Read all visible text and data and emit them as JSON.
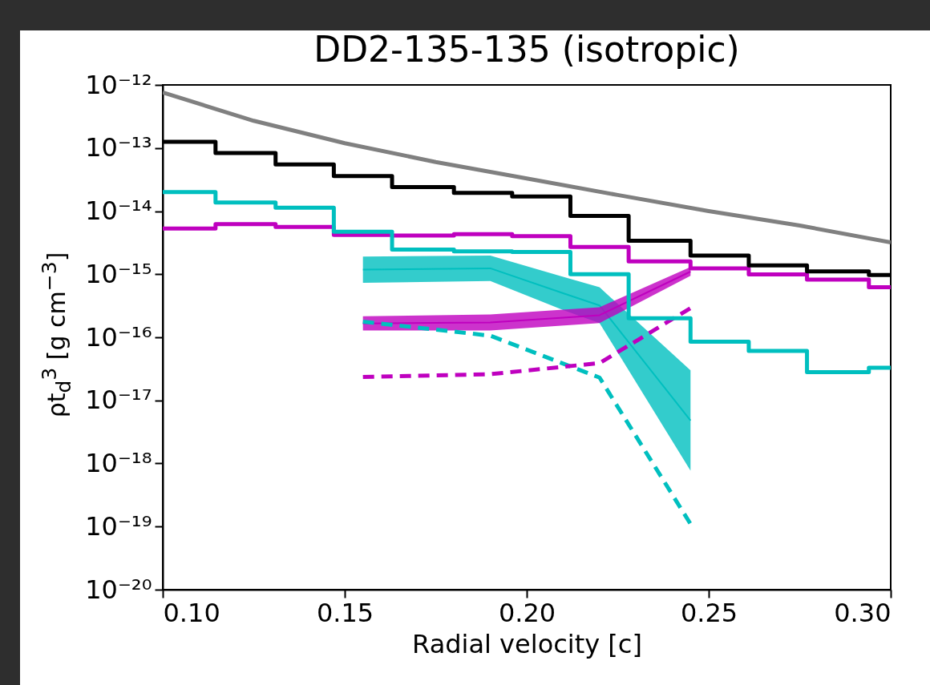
{
  "chart_data": {
    "type": "line",
    "title": "DD2-135-135 (isotropic)",
    "xlabel": "Radial velocity [c]",
    "ylabel": "ρt$_{d}$$^{3}$ [g cm$^{−3}$]",
    "log": "y",
    "grid": false,
    "xlim": [
      0.1,
      0.3
    ],
    "xticks": [
      {
        "value": 0.1,
        "label": "0.10"
      },
      0.15,
      {
        "value": 0.2,
        "label": "0.20"
      },
      0.25,
      {
        "value": 0.3,
        "label": "0.30"
      }
    ],
    "ylim": [
      1e-20,
      1e-12
    ],
    "yticks": [
      {
        "value": 1e-20,
        "label": "10⁻²⁰"
      },
      {
        "value": 1e-19,
        "label": "10⁻¹⁹"
      },
      {
        "value": 1e-18,
        "label": "10⁻¹⁸"
      },
      {
        "value": 1e-17,
        "label": "10⁻¹⁷"
      },
      {
        "value": 1e-16,
        "label": "10⁻¹⁶"
      },
      {
        "value": 1e-15,
        "label": "10⁻¹⁵"
      },
      {
        "value": 1e-14,
        "label": "10⁻¹⁴"
      },
      {
        "value": 1e-13,
        "label": "10⁻¹³"
      },
      {
        "value": 1e-12,
        "label": "10⁻¹²"
      }
    ],
    "series": [
      {
        "color": "#00bfbf",
        "x": [
          0.155,
          0.19,
          0.21,
          0.22,
          0.245
        ],
        "values": [
          1.18e-15,
          1.24e-15,
          5e-16,
          3.2e-16,
          4.8e-18
        ],
        "lower": [
          7.3e-16,
          7.8e-16,
          2.7e-16,
          1.68e-16,
          7.7e-19
        ],
        "upper": [
          1.9e-15,
          1.97e-15,
          9.1e-16,
          6.2e-16,
          3e-17
        ]
      },
      {
        "color": "#bf00bf",
        "x": [
          0.155,
          0.19,
          0.22,
          0.245
        ],
        "values": [
          1.66e-16,
          1.72e-16,
          2.24e-16,
          1.1e-15
        ],
        "lower": [
          1.28e-16,
          1.28e-16,
          1.68e-16,
          9.4e-16
        ],
        "upper": [
          2.15e-16,
          2.3e-16,
          3e-16,
          1.3e-15
        ]
      },
      {
        "color": "#00bfbf",
        "line_style": "dashed",
        "x": [
          0.155,
          0.19,
          0.22,
          0.245
        ],
        "values": [
          1.77e-16,
          1.06e-16,
          2.3e-17,
          1.1e-19
        ]
      },
      {
        "color": "#bf00bf",
        "line_style": "dashed",
        "x": [
          0.155,
          0.19,
          0.22,
          0.245
        ],
        "values": [
          2.35e-17,
          2.6e-17,
          3.9e-17,
          2.9e-16
        ]
      },
      {
        "type": "step",
        "color": "#bf00bf",
        "x": [
          0.1,
          0.1145,
          0.131,
          0.147,
          0.163,
          0.18,
          0.196,
          0.212,
          0.228,
          0.245,
          0.261,
          0.277,
          0.294,
          0.3
        ],
        "values": [
          5.3e-15,
          6.2e-15,
          5.6e-15,
          4.2e-15,
          4.1e-15,
          4.3e-15,
          4e-15,
          2.7e-15,
          1.6e-15,
          1.24e-15,
          9.9e-16,
          8.2e-16,
          6.2e-16,
          6.2e-16
        ]
      },
      {
        "type": "step",
        "color": "#00bfbf",
        "x": [
          0.1,
          0.1145,
          0.131,
          0.147,
          0.163,
          0.18,
          0.196,
          0.212,
          0.228,
          0.245,
          0.261,
          0.277,
          0.294,
          0.3
        ],
        "values": [
          2e-14,
          1.37e-14,
          1.13e-14,
          4.7e-15,
          2.45e-15,
          2.3e-15,
          2.25e-15,
          1e-15,
          2e-16,
          8.5e-17,
          6.1e-17,
          2.8e-17,
          3.3e-17,
          3.3e-17
        ]
      },
      {
        "type": "step",
        "color": "#000000",
        "x": [
          0.1,
          0.1145,
          0.131,
          0.147,
          0.163,
          0.18,
          0.196,
          0.212,
          0.228,
          0.245,
          0.261,
          0.277,
          0.294,
          0.3
        ],
        "values": [
          1.25e-13,
          8.3e-14,
          5.5e-14,
          3.6e-14,
          2.4e-14,
          1.95e-14,
          1.7e-14,
          8.4e-15,
          3.4e-15,
          1.97e-15,
          1.38e-15,
          1.11e-15,
          9.7e-16,
          9.7e-16
        ]
      },
      {
        "color": "#808080",
        "x": [
          0.1,
          0.125,
          0.15,
          0.175,
          0.2,
          0.225,
          0.25,
          0.275,
          0.3
        ],
        "values": [
          7.6e-13,
          2.7e-13,
          1.19e-13,
          6e-14,
          3.3e-14,
          1.8e-14,
          1e-14,
          5.9e-15,
          3.2e-15
        ]
      }
    ]
  }
}
